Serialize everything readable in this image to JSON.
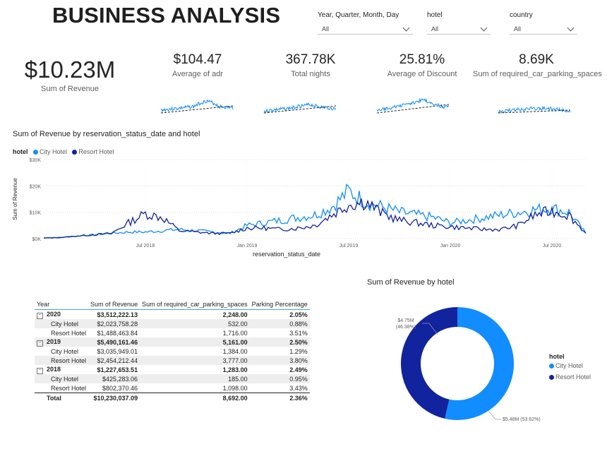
{
  "header": {
    "title": "BUSINESS ANALYSIS"
  },
  "slicers": [
    {
      "label": "Year, Quarter, Month, Day",
      "value": "All"
    },
    {
      "label": "hotel",
      "value": "All"
    },
    {
      "label": "country",
      "value": "All"
    }
  ],
  "kpis": {
    "main": {
      "value": "$10.23M",
      "label": "Sum of Revenue"
    },
    "cards": [
      {
        "value": "$104.47",
        "label": "Average of adr"
      },
      {
        "value": "367.78K",
        "label": "Total nights"
      },
      {
        "value": "25.81%",
        "label": "Average of Discount"
      },
      {
        "value": "8.69K",
        "label": "Sum of required_car_parking_spaces"
      }
    ]
  },
  "colors": {
    "city": "#118dff",
    "resort": "#12239e",
    "trend": "#252423",
    "grid": "#e1dfdd"
  },
  "chart_data": [
    {
      "type": "line",
      "title": "Sum of Revenue by reservation_status_date and hotel",
      "xlabel": "reservation_status_date",
      "ylabel": "Sum of Revenue",
      "legend_title": "hotel",
      "legend_position": "top-left",
      "y_ticks": [
        "$0K",
        "$10K",
        "$20K",
        "$30K"
      ],
      "x_ticks": [
        "Jul 2018",
        "Jan 2019",
        "Jul 2019",
        "Jan 2020",
        "Jul 2020"
      ],
      "ylim": [
        0,
        30000
      ],
      "x": [
        "2018-01",
        "2018-02",
        "2018-03",
        "2018-04",
        "2018-05",
        "2018-06",
        "2018-07",
        "2018-08",
        "2018-09",
        "2018-10",
        "2018-11",
        "2018-12",
        "2019-01",
        "2019-02",
        "2019-03",
        "2019-04",
        "2019-05",
        "2019-06",
        "2019-07",
        "2019-08",
        "2019-09",
        "2019-10",
        "2019-11",
        "2019-12",
        "2020-01",
        "2020-02",
        "2020-03",
        "2020-04",
        "2020-05",
        "2020-06",
        "2020-07",
        "2020-08",
        "2020-09"
      ],
      "series": [
        {
          "name": "City Hotel",
          "values": [
            300,
            500,
            1000,
            1500,
            2000,
            2500,
            2500,
            3000,
            3500,
            3000,
            2500,
            2000,
            5000,
            6000,
            7000,
            8000,
            9000,
            12000,
            18000,
            14000,
            12000,
            10000,
            9000,
            8000,
            6000,
            7000,
            8000,
            9000,
            10000,
            11000,
            11500,
            10000,
            2000
          ]
        },
        {
          "name": "Resort Hotel",
          "values": [
            200,
            400,
            1000,
            1500,
            2000,
            6000,
            9500,
            8000,
            3000,
            2500,
            2000,
            2000,
            4000,
            4000,
            3500,
            4000,
            5000,
            9000,
            13000,
            14000,
            9500,
            7000,
            6000,
            5000,
            4500,
            4000,
            3500,
            3500,
            5000,
            9000,
            10500,
            9000,
            2000
          ]
        }
      ]
    },
    {
      "type": "pie",
      "title": "Sum of Revenue by hotel",
      "legend_title": "hotel",
      "legend_position": "right",
      "slices": [
        {
          "name": "City Hotel",
          "value": 5.48,
          "label": "$5.48M (53.62%)",
          "label_value": "$5.48M",
          "label_pct": "(53.62%)"
        },
        {
          "name": "Resort Hotel",
          "value": 4.75,
          "label": "$4.75M (46.38%)",
          "label_value": "$4.75M",
          "label_pct": "(46.38%)"
        }
      ]
    },
    {
      "type": "table",
      "columns": [
        "Year",
        "Sum of Revenue",
        "Sum of required_car_parking_spaces",
        "Parking Percentage"
      ],
      "rows": [
        {
          "level": "year",
          "label": "2020",
          "revenue": "$3,512,222.13",
          "parking": "2,248.00",
          "pct": "2.05%"
        },
        {
          "level": "hotel",
          "label": "City Hotel",
          "revenue": "$2,023,758.28",
          "parking": "532.00",
          "pct": "0.88%"
        },
        {
          "level": "hotel",
          "label": "Resort Hotel",
          "revenue": "$1,488,463.84",
          "parking": "1,716.00",
          "pct": "3.51%"
        },
        {
          "level": "year",
          "label": "2019",
          "revenue": "$5,490,161.46",
          "parking": "5,161.00",
          "pct": "2.50%"
        },
        {
          "level": "hotel",
          "label": "City Hotel",
          "revenue": "$3,035,949.01",
          "parking": "1,384.00",
          "pct": "1.29%"
        },
        {
          "level": "hotel",
          "label": "Resort Hotel",
          "revenue": "$2,454,212.44",
          "parking": "3,777.00",
          "pct": "3.80%"
        },
        {
          "level": "year",
          "label": "2018",
          "revenue": "$1,227,653.51",
          "parking": "1,283.00",
          "pct": "2.49%"
        },
        {
          "level": "hotel",
          "label": "City Hotel",
          "revenue": "$425,283.06",
          "parking": "185.00",
          "pct": "0.95%"
        },
        {
          "level": "hotel",
          "label": "Resort Hotel",
          "revenue": "$802,370.46",
          "parking": "1,098.00",
          "pct": "3.43%"
        },
        {
          "level": "total",
          "label": "Total",
          "revenue": "$10,230,037.09",
          "parking": "8,692.00",
          "pct": "2.36%"
        }
      ]
    }
  ]
}
